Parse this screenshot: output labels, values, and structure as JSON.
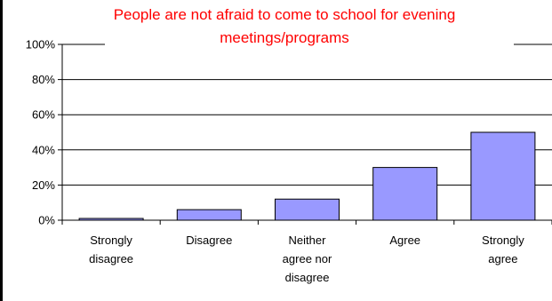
{
  "chart_data": {
    "type": "bar",
    "title": "People are not afraid to come to school for evening\nmeetings/programs",
    "categories": [
      "Strongly\ndisagree",
      "Disagree",
      "Neither\nagree nor\ndisagree",
      "Agree",
      "Strongly\nagree"
    ],
    "values": [
      1,
      6,
      12,
      30,
      50
    ],
    "ylim": [
      0,
      100
    ],
    "yticks": [
      "0%",
      "20%",
      "40%",
      "60%",
      "80%",
      "100%"
    ],
    "grid": true,
    "bar_color": "#9999ff",
    "title_color": "#ff0000"
  }
}
